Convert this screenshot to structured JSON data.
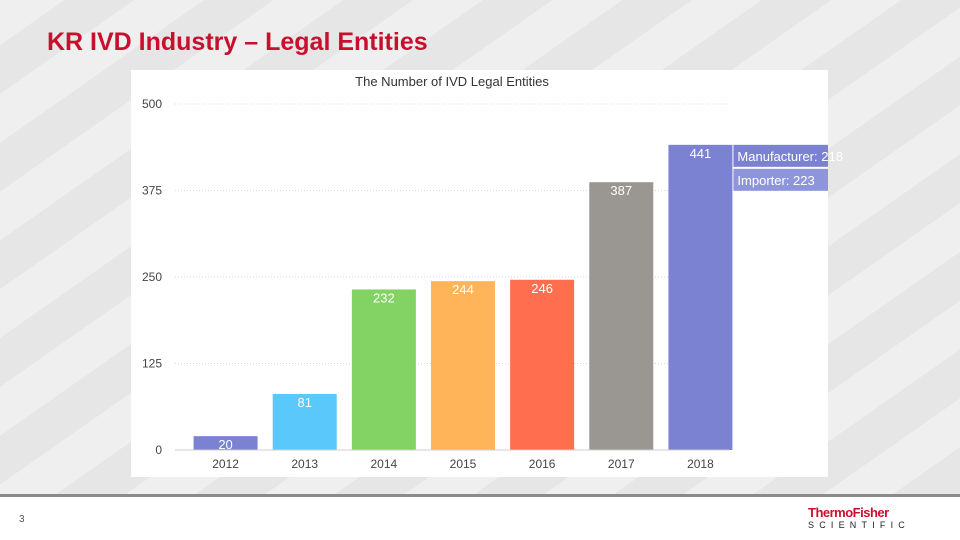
{
  "slide": {
    "title": "KR IVD Industry – Legal Entities",
    "page_number": "3",
    "logo_top": "ThermoFisher",
    "logo_bottom": "SCIENTIFIC"
  },
  "colors": {
    "title": "#c8102e",
    "bars": [
      "#7b82d2",
      "#5ac8fa",
      "#82d264",
      "#ffb45a",
      "#ff6e4e",
      "#9a9692",
      "#7b82d2"
    ],
    "legend_manufacturer": "#7b82d2",
    "legend_importer": "#8f95da"
  },
  "chart_data": {
    "type": "bar",
    "title": "The Number of IVD Legal Entities",
    "categories": [
      "2012",
      "2013",
      "2014",
      "2015",
      "2016",
      "2017",
      "2018"
    ],
    "values": [
      20,
      81,
      232,
      244,
      246,
      387,
      441
    ],
    "data_labels": [
      "20",
      "81",
      "232",
      "244",
      "246",
      "387",
      "441"
    ],
    "yticks": [
      0,
      125,
      250,
      375,
      500
    ],
    "ylim": [
      0,
      500
    ],
    "grid": true,
    "annotation": {
      "items": [
        {
          "label": "Manufacturer: 218",
          "value": 218
        },
        {
          "label": "Importer: 223",
          "value": 223
        }
      ]
    }
  }
}
